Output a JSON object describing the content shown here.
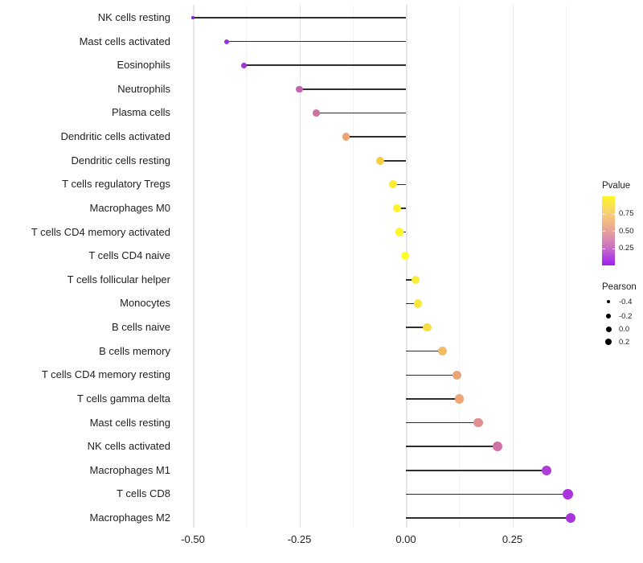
{
  "figure": {
    "background": "#ffffff"
  },
  "chart_data": {
    "type": "scatter",
    "variant": "lollipop",
    "orientation": "horizontal",
    "title": "",
    "xlabel": "",
    "ylabel": "",
    "xlim": [
      -0.545,
      0.41
    ],
    "x_ticks": [
      -0.5,
      -0.25,
      0.0,
      0.25
    ],
    "x_tick_labels": [
      "-0.50",
      "-0.25",
      "0.00",
      "0.25"
    ],
    "x_minor_gridlines": [
      -0.375,
      -0.125,
      0.125,
      0.375
    ],
    "grid": true,
    "legend_position": "right",
    "baseline_x": 0.0,
    "points": [
      {
        "label": "NK cells resting",
        "pearson": -0.5,
        "color": "#8428d8"
      },
      {
        "label": "Mast cells activated",
        "pearson": -0.42,
        "color": "#9733dd"
      },
      {
        "label": "Eosinophils",
        "pearson": -0.38,
        "color": "#a136d2"
      },
      {
        "label": "Neutrophils",
        "pearson": -0.25,
        "color": "#c464ae"
      },
      {
        "label": "Plasma cells",
        "pearson": -0.21,
        "color": "#d0709e"
      },
      {
        "label": "Dendritic cells activated",
        "pearson": -0.14,
        "color": "#eda273"
      },
      {
        "label": "Dendritic cells resting",
        "pearson": -0.06,
        "color": "#f6cd44"
      },
      {
        "label": "T cells regulatory  Tregs",
        "pearson": -0.03,
        "color": "#fcec32"
      },
      {
        "label": "Macrophages M0",
        "pearson": -0.021,
        "color": "#fdf22c"
      },
      {
        "label": "T cells CD4 memory activated",
        "pearson": -0.015,
        "color": "#fdf62b"
      },
      {
        "label": "T cells CD4 naive",
        "pearson": -0.002,
        "color": "#fdfd2a"
      },
      {
        "label": "T cells follicular helper",
        "pearson": 0.023,
        "color": "#f8ec3a"
      },
      {
        "label": "Monocytes",
        "pearson": 0.028,
        "color": "#f8e83e"
      },
      {
        "label": "B cells naive",
        "pearson": 0.05,
        "color": "#f5dc47"
      },
      {
        "label": "B cells memory",
        "pearson": 0.085,
        "color": "#f2bb62"
      },
      {
        "label": "T cells CD4 memory resting",
        "pearson": 0.12,
        "color": "#eba477"
      },
      {
        "label": "T cells gamma delta",
        "pearson": 0.125,
        "color": "#eca478"
      },
      {
        "label": "Mast cells resting",
        "pearson": 0.17,
        "color": "#e0908e"
      },
      {
        "label": "NK cells activated",
        "pearson": 0.215,
        "color": "#d26fa8"
      },
      {
        "label": "Macrophages M1",
        "pearson": 0.33,
        "color": "#ae3fd6"
      },
      {
        "label": "T cells CD8",
        "pearson": 0.38,
        "color": "#aa35dc"
      },
      {
        "label": "Macrophages M2",
        "pearson": 0.387,
        "color": "#aa35dc"
      }
    ]
  },
  "legend": {
    "pvalue": {
      "title": "Pvalue",
      "tick_labels": [
        "0.75",
        "0.50",
        "0.25"
      ],
      "tick_values": [
        0.75,
        0.5,
        0.25
      ],
      "range": [
        0.0,
        1.0
      ],
      "gradient_top_to_bottom": [
        "#fcf727",
        "#f8cf74",
        "#e9a29b",
        "#c96ec6",
        "#9d20f2"
      ]
    },
    "pearson": {
      "title": "Pearson",
      "labels": [
        "-0.4",
        "-0.2",
        "0.0",
        "0.2"
      ],
      "values": [
        -0.4,
        -0.2,
        0.0,
        0.2
      ],
      "dot_color": "#000000"
    }
  },
  "style": {
    "segment_color": "#2e2e2e",
    "gridline_major_color": "#e7e7e7",
    "gridline_minor_color": "#f3f3f3",
    "text_color": "#1f1f1f"
  }
}
